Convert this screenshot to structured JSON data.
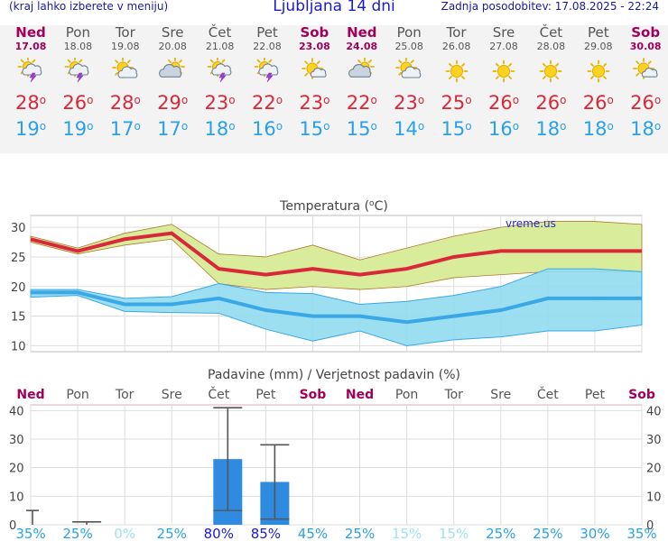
{
  "header": {
    "menu_hint": "(kraj lahko izberete v meniju)",
    "title": "Ljubljana 14 dni",
    "updated": "Zadnja posodobitev: 17.08.2025 - 22:24"
  },
  "colors": {
    "max_temp": "#d8283a",
    "min_temp": "#2aa0e8",
    "weekend": "#a0005a",
    "precip_bar": "#2e8be0",
    "temp_band_high": "#d9ec9b",
    "temp_band_low": "#90dcef"
  },
  "days": [
    {
      "name": "Ned",
      "date": "17.08",
      "icon": "sun-cloud-thunder-icon",
      "tmax": "28",
      "tmin": "19",
      "weekend": true
    },
    {
      "name": "Pon",
      "date": "18.08",
      "icon": "sun-cloud-thunder-icon",
      "tmax": "26",
      "tmin": "19",
      "weekend": false
    },
    {
      "name": "Tor",
      "date": "19.08",
      "icon": "sun-cloud-icon",
      "tmax": "28",
      "tmin": "17",
      "weekend": false
    },
    {
      "name": "Sre",
      "date": "20.08",
      "icon": "cloud-sun-icon",
      "tmax": "29",
      "tmin": "17",
      "weekend": false
    },
    {
      "name": "Čet",
      "date": "21.08",
      "icon": "sun-cloud-thunder-icon",
      "tmax": "23",
      "tmin": "18",
      "weekend": false
    },
    {
      "name": "Pet",
      "date": "22.08",
      "icon": "sun-cloud-thunder-icon",
      "tmax": "22",
      "tmin": "16",
      "weekend": false
    },
    {
      "name": "Sob",
      "date": "23.08",
      "icon": "sun-small-cloud-icon",
      "tmax": "23",
      "tmin": "15",
      "weekend": true
    },
    {
      "name": "Ned",
      "date": "24.08",
      "icon": "cloud-sun-icon",
      "tmax": "22",
      "tmin": "15",
      "weekend": true
    },
    {
      "name": "Pon",
      "date": "25.08",
      "icon": "sun-cloud-icon",
      "tmax": "23",
      "tmin": "14",
      "weekend": false
    },
    {
      "name": "Tor",
      "date": "26.08",
      "icon": "sun-icon",
      "tmax": "25",
      "tmin": "15",
      "weekend": false
    },
    {
      "name": "Sre",
      "date": "27.08",
      "icon": "sun-icon",
      "tmax": "26",
      "tmin": "16",
      "weekend": false
    },
    {
      "name": "Čet",
      "date": "28.08",
      "icon": "sun-icon",
      "tmax": "26",
      "tmin": "18",
      "weekend": false
    },
    {
      "name": "Pet",
      "date": "29.08",
      "icon": "sun-icon",
      "tmax": "26",
      "tmin": "18",
      "weekend": false
    },
    {
      "name": "Sob",
      "date": "30.08",
      "icon": "sun-small-cloud-icon",
      "tmax": "26",
      "tmin": "18",
      "weekend": true
    }
  ],
  "chart_data": [
    {
      "type": "line",
      "title": "Temperatura (",
      "title_unit": "C)",
      "watermark": "vreme.us",
      "ylim": [
        9,
        32
      ],
      "yticks": [
        10,
        15,
        20,
        25,
        30
      ],
      "grid": true,
      "x": [
        "17.08",
        "18.08",
        "19.08",
        "20.08",
        "21.08",
        "22.08",
        "23.08",
        "24.08",
        "25.08",
        "26.08",
        "27.08",
        "28.08",
        "29.08",
        "30.08"
      ],
      "series": [
        {
          "role": "max",
          "values": [
            28,
            26,
            28,
            29,
            23,
            22,
            23,
            22,
            23,
            25,
            26,
            26,
            26,
            26
          ]
        },
        {
          "role": "max_band_upper",
          "values": [
            28.5,
            26.5,
            29,
            30.5,
            25.5,
            25,
            27,
            24.5,
            26.5,
            28.5,
            30,
            31,
            31,
            30.5
          ]
        },
        {
          "role": "max_band_lower",
          "values": [
            27.5,
            25.5,
            27,
            28,
            20.5,
            19.5,
            20,
            19.5,
            20,
            21.5,
            22,
            22.5,
            22.5,
            22.5
          ]
        },
        {
          "role": "min",
          "values": [
            19,
            19,
            17,
            17,
            18,
            16,
            15,
            15,
            14,
            15,
            16,
            18,
            18,
            18
          ]
        },
        {
          "role": "min_band_upper",
          "values": [
            19.5,
            19.5,
            18,
            18.3,
            20.5,
            19,
            18.8,
            17,
            17.5,
            18.5,
            20,
            23,
            23,
            22.5
          ]
        },
        {
          "role": "min_band_lower",
          "values": [
            18.2,
            18.5,
            15.8,
            15.6,
            15.5,
            12.8,
            10.8,
            12.5,
            10,
            11,
            11.5,
            12.5,
            12.5,
            13.5
          ]
        }
      ]
    },
    {
      "type": "bar",
      "title": "Padavine (mm) / Verjetnost padavin (%)",
      "ylim": [
        0,
        42
      ],
      "yticks": [
        0,
        10,
        20,
        30,
        40
      ],
      "categories": [
        "Ned",
        "Pon",
        "Tor",
        "Sre",
        "Čet",
        "Pet",
        "Sob",
        "Ned",
        "Pon",
        "Tor",
        "Sre",
        "Čet",
        "Pet",
        "Sob"
      ],
      "weekend": [
        true,
        false,
        false,
        false,
        false,
        false,
        true,
        true,
        false,
        false,
        false,
        false,
        false,
        true
      ],
      "values": [
        0,
        0,
        0,
        0,
        23,
        15,
        0,
        0,
        0,
        0,
        0,
        0,
        0,
        0
      ],
      "range_low": [
        0,
        0,
        0,
        0,
        5,
        2,
        0,
        0,
        0,
        0,
        0,
        0,
        0,
        0
      ],
      "range_high": [
        5,
        1,
        0,
        0,
        41,
        28,
        0,
        0,
        0,
        0,
        0,
        0,
        0,
        0
      ],
      "probabilities": [
        "35%",
        "25%",
        "0%",
        "25%",
        "80%",
        "85%",
        "45%",
        "25%",
        "15%",
        "15%",
        "25%",
        "25%",
        "30%",
        "35%"
      ],
      "probability_values": [
        35,
        25,
        0,
        25,
        80,
        85,
        45,
        25,
        15,
        15,
        25,
        25,
        30,
        35
      ]
    }
  ]
}
